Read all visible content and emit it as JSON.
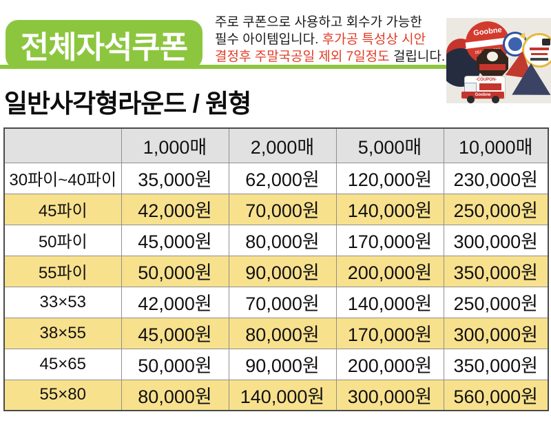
{
  "header": {
    "badge_label": "전체자석쿠폰",
    "description": {
      "line1_black": "주로 쿠폰으로 사용하고 회수가 가능한",
      "line2_black": "필수 아이템입니다. ",
      "line2_red": "후가공 특성상 시안",
      "line3_red": "결정후 주말국공일 제외 7일정도 ",
      "line3_black": "걸립니다."
    },
    "photo": {
      "brand_circle_label": "Goobne",
      "brand_circle_phone": "051.202.9797",
      "truck_coupon_label": "-COUPON-",
      "truck_brand_label": "Goobne"
    }
  },
  "section_title": "일반사각형라운드 / 원형",
  "table": {
    "columns": [
      "",
      "1,000매",
      "2,000매",
      "5,000매",
      "10,000매"
    ],
    "rows": [
      {
        "label": "30파이~40파이",
        "values": [
          "35,000원",
          "62,000원",
          "120,000원",
          "230,000원"
        ]
      },
      {
        "label": "45파이",
        "values": [
          "42,000원",
          "70,000원",
          "140,000원",
          "250,000원"
        ]
      },
      {
        "label": "50파이",
        "values": [
          "45,000원",
          "80,000원",
          "170,000원",
          "300,000원"
        ]
      },
      {
        "label": "55파이",
        "values": [
          "50,000원",
          "90,000원",
          "200,000원",
          "350,000원"
        ]
      },
      {
        "label": "33×53",
        "values": [
          "42,000원",
          "70,000원",
          "140,000원",
          "250,000원"
        ]
      },
      {
        "label": "38×55",
        "values": [
          "45,000원",
          "80,000원",
          "170,000원",
          "300,000원"
        ]
      },
      {
        "label": "45×65",
        "values": [
          "50,000원",
          "90,000원",
          "200,000원",
          "350,000원"
        ]
      },
      {
        "label": "55×80",
        "values": [
          "80,000원",
          "140,000원",
          "300,000원",
          "560,000원"
        ]
      }
    ]
  },
  "colors": {
    "accent_green": "#8CC63F",
    "alert_red": "#E23B25",
    "row_yellow": "#F8E18D",
    "header_gray": "#E1E1E1",
    "brand_red": "#D33A2E",
    "navy": "#262C40"
  }
}
